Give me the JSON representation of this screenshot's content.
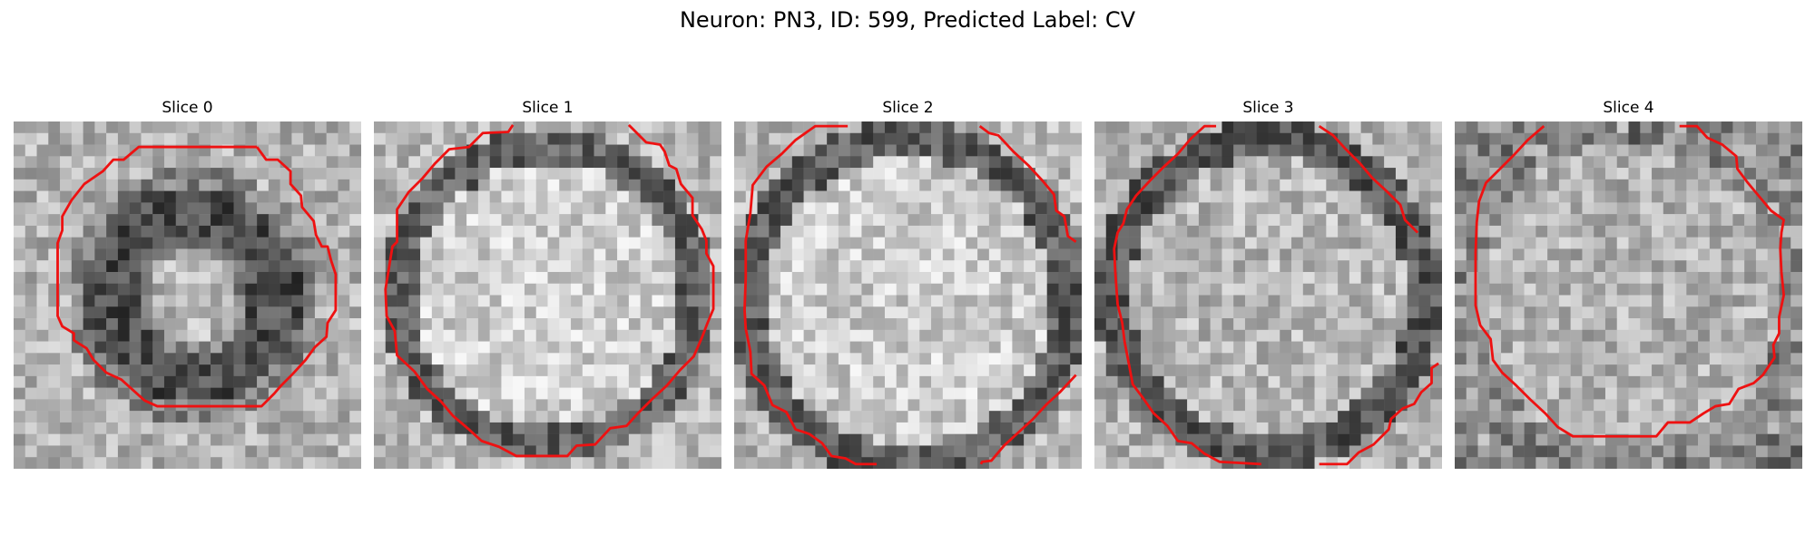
{
  "figure": {
    "title": "Neuron: PN3, ID: 599, Predicted Label: CV"
  },
  "colors": {
    "contour": "#ee1111",
    "background": "#ffffff"
  },
  "grid_cells": 32,
  "panels": [
    {
      "title": "Slice 0",
      "texture": {
        "mode": "ring",
        "cx": 15.5,
        "cy": 15.0,
        "r_in": 5.0,
        "r_out": 9.5,
        "seed": 11,
        "center_light": 0.72,
        "ring_dark": 0.3,
        "bg": 0.7
      },
      "contours": [
        [
          [
            21.0,
            2.2
          ],
          [
            10.8,
            2.2
          ],
          [
            9.5,
            3.3
          ],
          [
            8.6,
            3.3
          ],
          [
            7.7,
            4.3
          ],
          [
            6.1,
            5.4
          ],
          [
            5.0,
            6.8
          ],
          [
            4.2,
            8.2
          ],
          [
            4.2,
            9.4
          ],
          [
            3.8,
            10.5
          ],
          [
            3.8,
            16.8
          ],
          [
            4.2,
            17.7
          ],
          [
            5.2,
            18.3
          ],
          [
            5.2,
            18.9
          ],
          [
            6.3,
            19.6
          ],
          [
            6.9,
            20.6
          ],
          [
            8.0,
            21.7
          ],
          [
            9.3,
            22.3
          ],
          [
            10.3,
            23.2
          ],
          [
            11.3,
            24.1
          ],
          [
            12.4,
            24.6
          ],
          [
            21.4,
            24.6
          ],
          [
            22.5,
            23.5
          ],
          [
            23.1,
            22.8
          ],
          [
            24.1,
            21.8
          ],
          [
            25.2,
            20.6
          ],
          [
            26.0,
            19.5
          ],
          [
            27.0,
            18.6
          ],
          [
            27.1,
            17.4
          ],
          [
            27.8,
            16.3
          ],
          [
            27.8,
            13.2
          ],
          [
            27.4,
            12.0
          ],
          [
            27.1,
            10.8
          ],
          [
            26.6,
            10.8
          ],
          [
            26.1,
            9.8
          ],
          [
            25.9,
            8.6
          ],
          [
            24.9,
            7.4
          ],
          [
            24.8,
            6.4
          ],
          [
            23.9,
            5.4
          ],
          [
            23.9,
            4.3
          ],
          [
            22.8,
            3.3
          ],
          [
            21.8,
            3.3
          ],
          [
            21.0,
            2.2
          ]
        ]
      ]
    },
    {
      "title": "Slice 1",
      "texture": {
        "mode": "disc",
        "cx": 15.0,
        "cy": 15.0,
        "r_in": 11.5,
        "r_out": 14.5,
        "seed": 23,
        "center_light": 0.82,
        "ring_dark": 0.38,
        "bg": 0.72
      },
      "contours": [
        [
          [
            12.0,
            0.3
          ],
          [
            11.6,
            0.9
          ],
          [
            9.4,
            1.0
          ],
          [
            8.2,
            2.2
          ],
          [
            6.5,
            2.4
          ],
          [
            5.3,
            3.6
          ],
          [
            4.2,
            4.9
          ],
          [
            3.0,
            6.1
          ],
          [
            2.0,
            7.6
          ],
          [
            2.0,
            10.4
          ],
          [
            1.6,
            10.8
          ],
          [
            1.0,
            14.5
          ],
          [
            1.1,
            16.8
          ],
          [
            1.8,
            18.1
          ],
          [
            2.0,
            20.2
          ],
          [
            3.5,
            21.6
          ],
          [
            4.6,
            23.1
          ],
          [
            5.8,
            24.2
          ],
          [
            6.8,
            25.4
          ],
          [
            8.2,
            26.6
          ],
          [
            9.3,
            27.6
          ],
          [
            10.8,
            28.1
          ],
          [
            12.3,
            28.9
          ],
          [
            16.7,
            28.9
          ],
          [
            17.5,
            28.0
          ],
          [
            19.1,
            27.9
          ],
          [
            20.4,
            26.5
          ],
          [
            21.8,
            26.3
          ],
          [
            22.8,
            25.2
          ],
          [
            24.0,
            24.0
          ],
          [
            25.3,
            22.8
          ],
          [
            26.4,
            21.5
          ],
          [
            27.6,
            20.3
          ],
          [
            28.3,
            18.7
          ],
          [
            28.8,
            17.4
          ],
          [
            29.3,
            16.2
          ],
          [
            29.3,
            12.5
          ],
          [
            28.7,
            11.4
          ],
          [
            28.7,
            10.3
          ],
          [
            28.3,
            9.3
          ],
          [
            27.5,
            8.1
          ],
          [
            27.5,
            6.6
          ],
          [
            26.5,
            5.4
          ],
          [
            26.1,
            4.1
          ],
          [
            25.5,
            3.8
          ],
          [
            25.1,
            2.6
          ],
          [
            24.7,
            2.0
          ],
          [
            23.5,
            1.8
          ],
          [
            22.3,
            0.6
          ],
          [
            22.0,
            0.3
          ]
        ]
      ]
    },
    {
      "title": "Slice 2",
      "texture": {
        "mode": "disc",
        "cx": 15.0,
        "cy": 15.5,
        "r_in": 12.5,
        "r_out": 15.5,
        "seed": 37,
        "center_light": 0.8,
        "ring_dark": 0.36,
        "bg": 0.72
      },
      "contours": [
        [
          [
            9.8,
            0.4
          ],
          [
            7.0,
            0.4
          ],
          [
            5.3,
            1.6
          ],
          [
            4.1,
            2.8
          ],
          [
            2.8,
            3.9
          ],
          [
            1.6,
            5.5
          ],
          [
            1.4,
            7.9
          ],
          [
            1.0,
            10.3
          ],
          [
            1.0,
            13.5
          ],
          [
            0.9,
            16.3
          ],
          [
            1.0,
            17.9
          ],
          [
            1.4,
            19.9
          ],
          [
            1.5,
            21.8
          ],
          [
            2.6,
            22.8
          ],
          [
            3.3,
            24.5
          ],
          [
            4.5,
            25.1
          ],
          [
            5.3,
            26.6
          ],
          [
            6.5,
            27.0
          ],
          [
            7.6,
            27.8
          ],
          [
            8.4,
            28.9
          ],
          [
            9.6,
            29.1
          ],
          [
            10.5,
            29.6
          ],
          [
            12.3,
            29.6
          ]
        ],
        [
          [
            21.2,
            0.4
          ],
          [
            22.0,
            1.0
          ],
          [
            22.8,
            1.2
          ],
          [
            24.1,
            2.6
          ],
          [
            25.4,
            3.8
          ],
          [
            26.6,
            5.1
          ],
          [
            27.6,
            6.3
          ],
          [
            27.8,
            7.7
          ],
          [
            28.5,
            8.2
          ],
          [
            28.8,
            9.9
          ],
          [
            29.5,
            10.4
          ]
        ],
        [
          [
            29.5,
            21.9
          ],
          [
            28.1,
            23.4
          ],
          [
            27.0,
            24.4
          ],
          [
            25.8,
            25.7
          ],
          [
            24.6,
            26.8
          ],
          [
            23.3,
            28.0
          ],
          [
            22.2,
            29.3
          ],
          [
            21.4,
            29.4
          ],
          [
            21.3,
            29.6
          ]
        ]
      ]
    },
    {
      "title": "Slice 3",
      "texture": {
        "mode": "disc",
        "cx": 15.0,
        "cy": 15.0,
        "r_in": 12.0,
        "r_out": 15.0,
        "seed": 53,
        "center_light": 0.72,
        "ring_dark": 0.34,
        "bg": 0.7
      },
      "contours": [
        [
          [
            10.5,
            0.4
          ],
          [
            9.5,
            0.4
          ],
          [
            8.3,
            1.5
          ],
          [
            7.2,
            2.8
          ],
          [
            6.0,
            3.9
          ],
          [
            4.8,
            5.1
          ],
          [
            3.6,
            6.4
          ],
          [
            2.8,
            7.6
          ],
          [
            2.5,
            8.8
          ],
          [
            2.0,
            9.6
          ],
          [
            1.7,
            11.0
          ],
          [
            1.8,
            13.0
          ],
          [
            2.0,
            15.8
          ],
          [
            2.4,
            17.4
          ],
          [
            2.6,
            19.0
          ],
          [
            3.0,
            21.1
          ],
          [
            3.3,
            22.7
          ],
          [
            4.2,
            23.9
          ],
          [
            5.1,
            25.2
          ],
          [
            6.3,
            26.3
          ],
          [
            7.2,
            27.6
          ],
          [
            8.4,
            27.8
          ],
          [
            9.5,
            28.7
          ],
          [
            10.8,
            29.4
          ],
          [
            14.4,
            29.6
          ]
        ],
        [
          [
            19.4,
            0.4
          ],
          [
            20.6,
            1.2
          ],
          [
            21.7,
            2.4
          ],
          [
            22.9,
            3.6
          ],
          [
            24.0,
            4.9
          ],
          [
            25.2,
            6.0
          ],
          [
            26.4,
            7.2
          ],
          [
            26.8,
            8.5
          ],
          [
            27.9,
            9.6
          ]
        ],
        [
          [
            29.7,
            20.9
          ],
          [
            29.1,
            21.3
          ],
          [
            29.1,
            22.6
          ],
          [
            28.2,
            23.4
          ],
          [
            27.6,
            24.4
          ],
          [
            26.6,
            24.8
          ],
          [
            25.6,
            25.7
          ],
          [
            25.4,
            26.6
          ],
          [
            24.1,
            27.9
          ],
          [
            22.8,
            28.6
          ],
          [
            21.8,
            29.6
          ],
          [
            19.4,
            29.6
          ]
        ]
      ]
    },
    {
      "title": "Slice 4",
      "texture": {
        "mode": "soma",
        "cx": 15.0,
        "cy": 15.0,
        "r_in": 13.0,
        "r_out": 16.0,
        "seed": 71,
        "center_light": 0.7,
        "ring_dark": 0.42,
        "bg": 0.66
      },
      "contours": [
        [
          [
            7.7,
            0.4
          ],
          [
            6.3,
            1.6
          ],
          [
            5.1,
            2.9
          ],
          [
            3.9,
            4.1
          ],
          [
            2.7,
            5.3
          ],
          [
            2.1,
            6.9
          ],
          [
            1.9,
            8.7
          ],
          [
            1.8,
            11.3
          ],
          [
            1.8,
            15.9
          ],
          [
            2.2,
            17.6
          ],
          [
            3.1,
            18.8
          ],
          [
            3.3,
            20.6
          ],
          [
            4.1,
            21.7
          ],
          [
            5.3,
            22.8
          ],
          [
            6.5,
            24.0
          ],
          [
            7.8,
            25.2
          ],
          [
            8.9,
            26.4
          ],
          [
            10.2,
            27.2
          ],
          [
            11.6,
            27.2
          ],
          [
            17.4,
            27.2
          ],
          [
            18.4,
            26.0
          ],
          [
            20.3,
            26.0
          ],
          [
            21.5,
            25.2
          ],
          [
            22.5,
            24.6
          ],
          [
            23.7,
            24.4
          ],
          [
            24.5,
            23.1
          ],
          [
            25.8,
            22.6
          ],
          [
            26.6,
            21.9
          ],
          [
            27.6,
            20.4
          ],
          [
            27.5,
            19.3
          ],
          [
            28.0,
            18.3
          ],
          [
            28.0,
            16.9
          ],
          [
            28.4,
            15.0
          ],
          [
            28.2,
            13.0
          ],
          [
            28.1,
            11.0
          ],
          [
            28.2,
            9.6
          ],
          [
            28.4,
            8.5
          ],
          [
            27.3,
            7.7
          ],
          [
            26.3,
            6.5
          ],
          [
            25.3,
            5.3
          ],
          [
            24.4,
            4.1
          ],
          [
            24.3,
            3.0
          ],
          [
            23.1,
            2.0
          ],
          [
            21.8,
            1.4
          ],
          [
            20.9,
            0.4
          ],
          [
            19.4,
            0.4
          ]
        ]
      ]
    }
  ]
}
